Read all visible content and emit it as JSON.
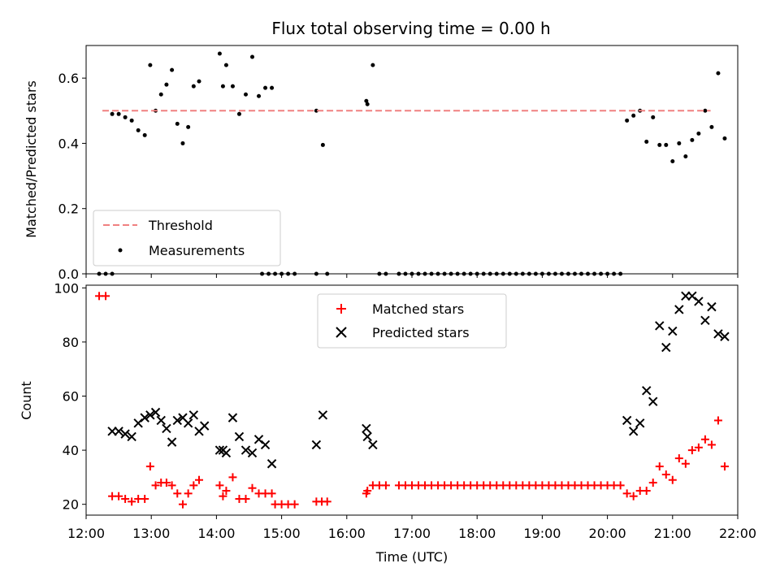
{
  "title": "Flux total observing time = 0.00 h",
  "top_panel": {
    "ylabel": "Matched/Predicted stars",
    "legend": {
      "threshold_label": "Threshold",
      "measurements_label": "Measurements"
    }
  },
  "bottom_panel": {
    "ylabel": "Count",
    "xlabel": "Time (UTC)",
    "legend": {
      "matched_label": "Matched stars",
      "predicted_label": "Predicted stars"
    }
  },
  "colors": {
    "threshold": "#f08080",
    "measurements": "#000000",
    "matched": "#ff0000",
    "predicted": "#000000"
  },
  "chart_data": [
    {
      "type": "scatter",
      "panel": "top",
      "ylabel": "Matched/Predicted stars",
      "xlim": [
        "12:00",
        "22:00"
      ],
      "ylim": [
        0,
        0.7
      ],
      "yticks": [
        "0.0",
        "0.2",
        "0.4",
        "0.6"
      ],
      "threshold": {
        "name": "Threshold",
        "value": 0.5,
        "x_range": [
          "12:15",
          "21:35"
        ],
        "style": "dashed"
      },
      "series": [
        {
          "name": "Measurements",
          "points": [
            [
              "12:12",
              0
            ],
            [
              "12:18",
              0
            ],
            [
              "12:24",
              0
            ],
            [
              "12:24",
              0.49
            ],
            [
              "12:30",
              0.49
            ],
            [
              "12:36",
              0.48
            ],
            [
              "12:42",
              0.47
            ],
            [
              "12:48",
              0.44
            ],
            [
              "12:54",
              0.425
            ],
            [
              "12:59",
              0.64
            ],
            [
              "13:04",
              0.5
            ],
            [
              "13:09",
              0.55
            ],
            [
              "13:14",
              0.58
            ],
            [
              "13:19",
              0.625
            ],
            [
              "13:24",
              0.46
            ],
            [
              "13:29",
              0.4
            ],
            [
              "13:34",
              0.45
            ],
            [
              "13:39",
              0.575
            ],
            [
              "13:44",
              0.59
            ],
            [
              "14:03",
              0.675
            ],
            [
              "14:06",
              0.575
            ],
            [
              "14:09",
              0.64
            ],
            [
              "14:15",
              0.575
            ],
            [
              "14:21",
              0.49
            ],
            [
              "14:27",
              0.55
            ],
            [
              "14:33",
              0.665
            ],
            [
              "14:39",
              0.545
            ],
            [
              "14:45",
              0.57
            ],
            [
              "14:51",
              0.57
            ],
            [
              "14:42",
              0
            ],
            [
              "14:48",
              0
            ],
            [
              "14:54",
              0
            ],
            [
              "15:00",
              0
            ],
            [
              "15:06",
              0
            ],
            [
              "15:12",
              0
            ],
            [
              "15:32",
              0.5
            ],
            [
              "15:38",
              0.395
            ],
            [
              "15:32",
              0
            ],
            [
              "15:42",
              0
            ],
            [
              "16:18",
              0.53
            ],
            [
              "16:19",
              0.52
            ],
            [
              "16:24",
              0.64
            ],
            [
              "16:30",
              0
            ],
            [
              "16:36",
              0
            ],
            [
              "16:48",
              0
            ],
            [
              "16:54",
              0
            ],
            [
              "17:00",
              0
            ],
            [
              "17:06",
              0
            ],
            [
              "17:12",
              0
            ],
            [
              "17:18",
              0
            ],
            [
              "17:24",
              0
            ],
            [
              "17:30",
              0
            ],
            [
              "17:36",
              0
            ],
            [
              "17:42",
              0
            ],
            [
              "17:48",
              0
            ],
            [
              "17:54",
              0
            ],
            [
              "18:00",
              0
            ],
            [
              "18:06",
              0
            ],
            [
              "18:12",
              0
            ],
            [
              "18:18",
              0
            ],
            [
              "18:24",
              0
            ],
            [
              "18:30",
              0
            ],
            [
              "18:36",
              0
            ],
            [
              "18:42",
              0
            ],
            [
              "18:48",
              0
            ],
            [
              "18:54",
              0
            ],
            [
              "19:00",
              0
            ],
            [
              "19:06",
              0
            ],
            [
              "19:12",
              0
            ],
            [
              "19:18",
              0
            ],
            [
              "19:24",
              0
            ],
            [
              "19:30",
              0
            ],
            [
              "19:36",
              0
            ],
            [
              "19:42",
              0
            ],
            [
              "19:48",
              0
            ],
            [
              "19:54",
              0
            ],
            [
              "20:00",
              0
            ],
            [
              "20:06",
              0
            ],
            [
              "20:12",
              0
            ],
            [
              "20:18",
              0.47
            ],
            [
              "20:24",
              0.485
            ],
            [
              "20:30",
              0.5
            ],
            [
              "20:36",
              0.405
            ],
            [
              "20:42",
              0.48
            ],
            [
              "20:48",
              0.395
            ],
            [
              "20:54",
              0.395
            ],
            [
              "21:00",
              0.345
            ],
            [
              "21:06",
              0.4
            ],
            [
              "21:12",
              0.36
            ],
            [
              "21:18",
              0.41
            ],
            [
              "21:24",
              0.43
            ],
            [
              "21:30",
              0.5
            ],
            [
              "21:36",
              0.45
            ],
            [
              "21:42",
              0.615
            ],
            [
              "21:48",
              0.415
            ]
          ]
        }
      ]
    },
    {
      "type": "scatter",
      "panel": "bottom",
      "xlabel": "Time (UTC)",
      "ylabel": "Count",
      "xlim": [
        "12:00",
        "22:00"
      ],
      "ylim": [
        16,
        101
      ],
      "xticks": [
        "12:00",
        "13:00",
        "14:00",
        "15:00",
        "16:00",
        "17:00",
        "18:00",
        "19:00",
        "20:00",
        "21:00",
        "22:00"
      ],
      "yticks": [
        "20",
        "40",
        "60",
        "80",
        "100"
      ],
      "series": [
        {
          "name": "Matched stars",
          "marker": "plus",
          "points": [
            [
              "12:12",
              97
            ],
            [
              "12:18",
              97
            ],
            [
              "12:24",
              23
            ],
            [
              "12:30",
              23
            ],
            [
              "12:36",
              22
            ],
            [
              "12:42",
              21
            ],
            [
              "12:48",
              22
            ],
            [
              "12:54",
              22
            ],
            [
              "12:59",
              34
            ],
            [
              "13:04",
              27
            ],
            [
              "13:09",
              28
            ],
            [
              "13:14",
              28
            ],
            [
              "13:19",
              27
            ],
            [
              "13:24",
              24
            ],
            [
              "13:29",
              20
            ],
            [
              "13:34",
              24
            ],
            [
              "13:39",
              27
            ],
            [
              "13:44",
              29
            ],
            [
              "14:03",
              27
            ],
            [
              "14:06",
              23
            ],
            [
              "14:09",
              25
            ],
            [
              "14:15",
              30
            ],
            [
              "14:21",
              22
            ],
            [
              "14:27",
              22
            ],
            [
              "14:33",
              26
            ],
            [
              "14:39",
              24
            ],
            [
              "14:45",
              24
            ],
            [
              "14:51",
              24
            ],
            [
              "14:54",
              20
            ],
            [
              "15:00",
              20
            ],
            [
              "15:06",
              20
            ],
            [
              "15:12",
              20
            ],
            [
              "15:32",
              21
            ],
            [
              "15:37",
              21
            ],
            [
              "15:42",
              21
            ],
            [
              "16:18",
              24
            ],
            [
              "16:19",
              25
            ],
            [
              "16:24",
              27
            ],
            [
              "16:30",
              27
            ],
            [
              "16:36",
              27
            ],
            [
              "16:48",
              27
            ],
            [
              "16:54",
              27
            ],
            [
              "17:00",
              27
            ],
            [
              "17:06",
              27
            ],
            [
              "17:12",
              27
            ],
            [
              "17:18",
              27
            ],
            [
              "17:24",
              27
            ],
            [
              "17:30",
              27
            ],
            [
              "17:36",
              27
            ],
            [
              "17:42",
              27
            ],
            [
              "17:48",
              27
            ],
            [
              "17:54",
              27
            ],
            [
              "18:00",
              27
            ],
            [
              "18:06",
              27
            ],
            [
              "18:12",
              27
            ],
            [
              "18:18",
              27
            ],
            [
              "18:24",
              27
            ],
            [
              "18:30",
              27
            ],
            [
              "18:36",
              27
            ],
            [
              "18:42",
              27
            ],
            [
              "18:48",
              27
            ],
            [
              "18:54",
              27
            ],
            [
              "19:00",
              27
            ],
            [
              "19:06",
              27
            ],
            [
              "19:12",
              27
            ],
            [
              "19:18",
              27
            ],
            [
              "19:24",
              27
            ],
            [
              "19:30",
              27
            ],
            [
              "19:36",
              27
            ],
            [
              "19:42",
              27
            ],
            [
              "19:48",
              27
            ],
            [
              "19:54",
              27
            ],
            [
              "20:00",
              27
            ],
            [
              "20:06",
              27
            ],
            [
              "20:12",
              27
            ],
            [
              "20:18",
              24
            ],
            [
              "20:24",
              23
            ],
            [
              "20:30",
              25
            ],
            [
              "20:36",
              25
            ],
            [
              "20:42",
              28
            ],
            [
              "20:48",
              34
            ],
            [
              "20:54",
              31
            ],
            [
              "21:00",
              29
            ],
            [
              "21:06",
              37
            ],
            [
              "21:12",
              35
            ],
            [
              "21:18",
              40
            ],
            [
              "21:24",
              41
            ],
            [
              "21:30",
              44
            ],
            [
              "21:36",
              42
            ],
            [
              "21:42",
              51
            ],
            [
              "21:48",
              34
            ]
          ]
        },
        {
          "name": "Predicted stars",
          "marker": "x",
          "points": [
            [
              "12:24",
              47
            ],
            [
              "12:30",
              47
            ],
            [
              "12:36",
              46
            ],
            [
              "12:42",
              45
            ],
            [
              "12:48",
              50
            ],
            [
              "12:54",
              52
            ],
            [
              "12:59",
              53
            ],
            [
              "13:04",
              54
            ],
            [
              "13:09",
              51
            ],
            [
              "13:14",
              48
            ],
            [
              "13:19",
              43
            ],
            [
              "13:24",
              51
            ],
            [
              "13:29",
              52
            ],
            [
              "13:34",
              50
            ],
            [
              "13:39",
              53
            ],
            [
              "13:44",
              47
            ],
            [
              "13:49",
              49
            ],
            [
              "14:03",
              40
            ],
            [
              "14:06",
              40
            ],
            [
              "14:09",
              39
            ],
            [
              "14:15",
              52
            ],
            [
              "14:21",
              45
            ],
            [
              "14:27",
              40
            ],
            [
              "14:33",
              39
            ],
            [
              "14:39",
              44
            ],
            [
              "14:45",
              42
            ],
            [
              "14:51",
              35
            ],
            [
              "15:32",
              42
            ],
            [
              "15:38",
              53
            ],
            [
              "16:18",
              48
            ],
            [
              "16:19",
              45
            ],
            [
              "16:24",
              42
            ],
            [
              "20:18",
              51
            ],
            [
              "20:24",
              47
            ],
            [
              "20:30",
              50
            ],
            [
              "20:36",
              62
            ],
            [
              "20:42",
              58
            ],
            [
              "20:48",
              86
            ],
            [
              "20:54",
              78
            ],
            [
              "21:00",
              84
            ],
            [
              "21:06",
              92
            ],
            [
              "21:12",
              97
            ],
            [
              "21:18",
              97
            ],
            [
              "21:24",
              95
            ],
            [
              "21:30",
              88
            ],
            [
              "21:36",
              93
            ],
            [
              "21:42",
              83
            ],
            [
              "21:48",
              82
            ]
          ]
        }
      ]
    }
  ]
}
